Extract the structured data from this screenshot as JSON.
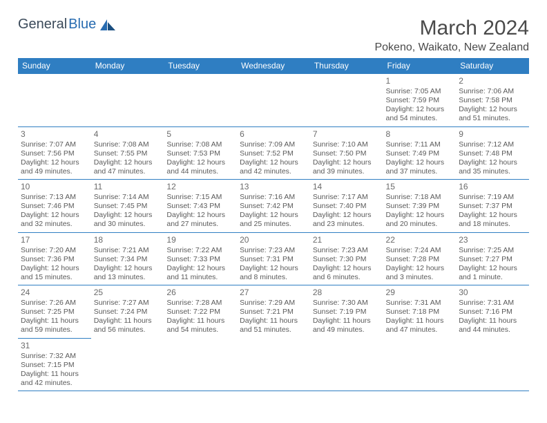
{
  "brand": {
    "name_part1": "General",
    "name_part2": "Blue",
    "accent_color": "#276bb0",
    "text_color": "#3b4a5a"
  },
  "title": "March 2024",
  "location": "Pokeno, Waikato, New Zealand",
  "header_bg": "#2f7ec2",
  "header_fg": "#ffffff",
  "border_color": "#2f7ec2",
  "weekday_labels": [
    "Sunday",
    "Monday",
    "Tuesday",
    "Wednesday",
    "Thursday",
    "Friday",
    "Saturday"
  ],
  "weeks": [
    [
      null,
      null,
      null,
      null,
      null,
      {
        "day": "1",
        "sunrise": "7:05 AM",
        "sunset": "7:59 PM",
        "daylight": "12 hours and 54 minutes."
      },
      {
        "day": "2",
        "sunrise": "7:06 AM",
        "sunset": "7:58 PM",
        "daylight": "12 hours and 51 minutes."
      }
    ],
    [
      {
        "day": "3",
        "sunrise": "7:07 AM",
        "sunset": "7:56 PM",
        "daylight": "12 hours and 49 minutes."
      },
      {
        "day": "4",
        "sunrise": "7:08 AM",
        "sunset": "7:55 PM",
        "daylight": "12 hours and 47 minutes."
      },
      {
        "day": "5",
        "sunrise": "7:08 AM",
        "sunset": "7:53 PM",
        "daylight": "12 hours and 44 minutes."
      },
      {
        "day": "6",
        "sunrise": "7:09 AM",
        "sunset": "7:52 PM",
        "daylight": "12 hours and 42 minutes."
      },
      {
        "day": "7",
        "sunrise": "7:10 AM",
        "sunset": "7:50 PM",
        "daylight": "12 hours and 39 minutes."
      },
      {
        "day": "8",
        "sunrise": "7:11 AM",
        "sunset": "7:49 PM",
        "daylight": "12 hours and 37 minutes."
      },
      {
        "day": "9",
        "sunrise": "7:12 AM",
        "sunset": "7:48 PM",
        "daylight": "12 hours and 35 minutes."
      }
    ],
    [
      {
        "day": "10",
        "sunrise": "7:13 AM",
        "sunset": "7:46 PM",
        "daylight": "12 hours and 32 minutes."
      },
      {
        "day": "11",
        "sunrise": "7:14 AM",
        "sunset": "7:45 PM",
        "daylight": "12 hours and 30 minutes."
      },
      {
        "day": "12",
        "sunrise": "7:15 AM",
        "sunset": "7:43 PM",
        "daylight": "12 hours and 27 minutes."
      },
      {
        "day": "13",
        "sunrise": "7:16 AM",
        "sunset": "7:42 PM",
        "daylight": "12 hours and 25 minutes."
      },
      {
        "day": "14",
        "sunrise": "7:17 AM",
        "sunset": "7:40 PM",
        "daylight": "12 hours and 23 minutes."
      },
      {
        "day": "15",
        "sunrise": "7:18 AM",
        "sunset": "7:39 PM",
        "daylight": "12 hours and 20 minutes."
      },
      {
        "day": "16",
        "sunrise": "7:19 AM",
        "sunset": "7:37 PM",
        "daylight": "12 hours and 18 minutes."
      }
    ],
    [
      {
        "day": "17",
        "sunrise": "7:20 AM",
        "sunset": "7:36 PM",
        "daylight": "12 hours and 15 minutes."
      },
      {
        "day": "18",
        "sunrise": "7:21 AM",
        "sunset": "7:34 PM",
        "daylight": "12 hours and 13 minutes."
      },
      {
        "day": "19",
        "sunrise": "7:22 AM",
        "sunset": "7:33 PM",
        "daylight": "12 hours and 11 minutes."
      },
      {
        "day": "20",
        "sunrise": "7:23 AM",
        "sunset": "7:31 PM",
        "daylight": "12 hours and 8 minutes."
      },
      {
        "day": "21",
        "sunrise": "7:23 AM",
        "sunset": "7:30 PM",
        "daylight": "12 hours and 6 minutes."
      },
      {
        "day": "22",
        "sunrise": "7:24 AM",
        "sunset": "7:28 PM",
        "daylight": "12 hours and 3 minutes."
      },
      {
        "day": "23",
        "sunrise": "7:25 AM",
        "sunset": "7:27 PM",
        "daylight": "12 hours and 1 minute."
      }
    ],
    [
      {
        "day": "24",
        "sunrise": "7:26 AM",
        "sunset": "7:25 PM",
        "daylight": "11 hours and 59 minutes."
      },
      {
        "day": "25",
        "sunrise": "7:27 AM",
        "sunset": "7:24 PM",
        "daylight": "11 hours and 56 minutes."
      },
      {
        "day": "26",
        "sunrise": "7:28 AM",
        "sunset": "7:22 PM",
        "daylight": "11 hours and 54 minutes."
      },
      {
        "day": "27",
        "sunrise": "7:29 AM",
        "sunset": "7:21 PM",
        "daylight": "11 hours and 51 minutes."
      },
      {
        "day": "28",
        "sunrise": "7:30 AM",
        "sunset": "7:19 PM",
        "daylight": "11 hours and 49 minutes."
      },
      {
        "day": "29",
        "sunrise": "7:31 AM",
        "sunset": "7:18 PM",
        "daylight": "11 hours and 47 minutes."
      },
      {
        "day": "30",
        "sunrise": "7:31 AM",
        "sunset": "7:16 PM",
        "daylight": "11 hours and 44 minutes."
      }
    ],
    [
      {
        "day": "31",
        "sunrise": "7:32 AM",
        "sunset": "7:15 PM",
        "daylight": "11 hours and 42 minutes."
      },
      null,
      null,
      null,
      null,
      null,
      null
    ]
  ],
  "labels": {
    "sunrise_prefix": "Sunrise: ",
    "sunset_prefix": "Sunset: ",
    "daylight_prefix": "Daylight: "
  }
}
